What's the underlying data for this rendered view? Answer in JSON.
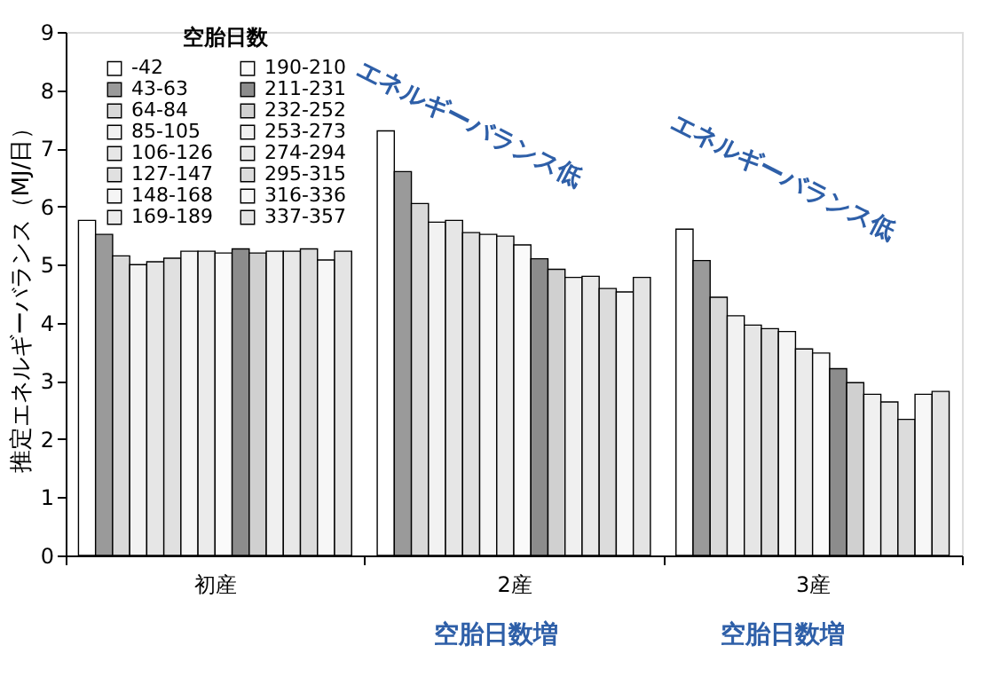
{
  "chart_data": {
    "type": "bar",
    "ylabel": "推定エネルギーバランス（MJ/日）",
    "legend_title": "空胎日数",
    "legend": "top left",
    "grid": false,
    "categories": [
      "初産",
      "2産",
      "3産"
    ],
    "ylim": [
      0,
      9
    ],
    "yticks": [
      0,
      1,
      2,
      3,
      4,
      5,
      6,
      7,
      8,
      9
    ],
    "series": [
      {
        "name": "-42",
        "color": "#ffffff",
        "values": [
          5.76,
          7.3,
          5.61
        ]
      },
      {
        "name": "43-63",
        "color": "#9a9a9a",
        "values": [
          5.52,
          6.6,
          5.07
        ]
      },
      {
        "name": "64-84",
        "color": "#d9d9d9",
        "values": [
          5.15,
          6.05,
          4.44
        ]
      },
      {
        "name": "85-105",
        "color": "#f2f2f2",
        "values": [
          5.0,
          5.73,
          4.12
        ]
      },
      {
        "name": "106-126",
        "color": "#e6e6e6",
        "values": [
          5.05,
          5.76,
          3.96
        ]
      },
      {
        "name": "127-147",
        "color": "#e0e0e0",
        "values": [
          5.11,
          5.55,
          3.9
        ]
      },
      {
        "name": "148-168",
        "color": "#f5f5f5",
        "values": [
          5.23,
          5.52,
          3.85
        ]
      },
      {
        "name": "169-189",
        "color": "#ebebeb",
        "values": [
          5.23,
          5.49,
          3.55
        ]
      },
      {
        "name": "190-210",
        "color": "#fafafa",
        "values": [
          5.2,
          5.34,
          3.48
        ]
      },
      {
        "name": "211-231",
        "color": "#8c8c8c",
        "values": [
          5.27,
          5.1,
          3.21
        ]
      },
      {
        "name": "232-252",
        "color": "#d0d0d0",
        "values": [
          5.2,
          4.92,
          2.97
        ]
      },
      {
        "name": "253-273",
        "color": "#f0f0f0",
        "values": [
          5.23,
          4.78,
          2.77
        ]
      },
      {
        "name": "274-294",
        "color": "#e8e8e8",
        "values": [
          5.23,
          4.8,
          2.64
        ]
      },
      {
        "name": "295-315",
        "color": "#dcdcdc",
        "values": [
          5.27,
          4.59,
          2.34
        ]
      },
      {
        "name": "316-336",
        "color": "#f7f7f7",
        "values": [
          5.08,
          4.53,
          2.77
        ]
      },
      {
        "name": "337-357",
        "color": "#e4e4e4",
        "values": [
          5.23,
          4.78,
          2.82
        ]
      }
    ],
    "annotations": [
      "エネルギーバランス低",
      "エネルギーバランス低",
      "空胎日数増",
      "空胎日数増"
    ]
  }
}
